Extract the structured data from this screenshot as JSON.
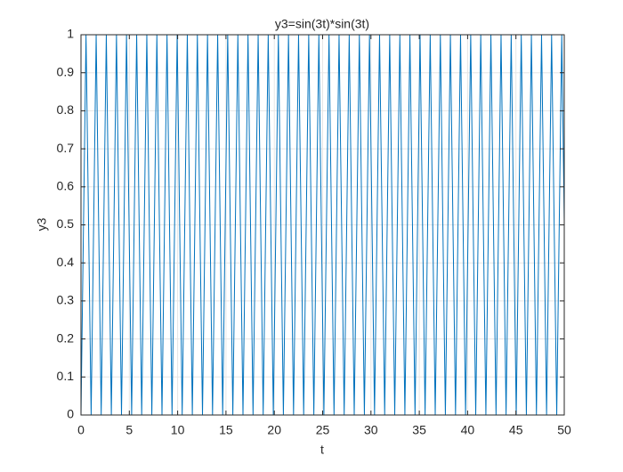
{
  "chart_data": {
    "type": "line",
    "title": "y3=sin(3t)*sin(3t)",
    "x_label": "t",
    "y_label": "y3",
    "series": [
      {
        "name": "y3",
        "color": "#0072bd",
        "x": [
          0,
          0.52,
          1.05,
          1.57,
          2.09,
          2.62,
          3.14,
          3.67,
          4.19,
          4.71,
          5.24,
          5.76,
          6.28,
          6.81,
          7.33,
          7.85,
          8.38,
          8.9,
          9.42,
          9.95,
          10.47,
          11.0,
          11.52,
          12.04,
          12.57,
          13.09,
          13.61,
          14.14,
          14.66,
          15.18,
          15.71,
          16.23,
          16.76,
          17.28,
          17.8,
          18.33,
          18.85,
          19.37,
          19.9,
          20.42,
          20.94,
          21.47,
          21.99,
          22.51,
          23.04,
          23.56,
          24.09,
          24.61,
          25.13,
          25.66,
          26.18,
          26.7,
          27.23,
          27.75,
          28.27,
          28.8,
          29.32,
          29.85,
          30.37,
          30.89,
          31.42,
          31.94,
          32.46,
          32.99,
          33.51,
          34.03,
          34.56,
          35.08,
          35.6,
          36.13,
          36.65,
          37.18,
          37.7,
          38.22,
          38.75,
          39.27,
          39.79,
          40.32,
          40.84,
          41.36,
          41.89,
          42.41,
          42.94,
          43.46,
          43.98,
          44.51,
          45.03,
          45.55,
          46.08,
          46.6,
          47.12,
          47.65,
          48.17,
          48.69,
          49.22,
          49.74,
          50
        ],
        "values": [
          0,
          1,
          0,
          1,
          0,
          1,
          0,
          1,
          0,
          1,
          0,
          1,
          0,
          1,
          0,
          1,
          0,
          1,
          0,
          1,
          0,
          1,
          0,
          1,
          0,
          1,
          0,
          1,
          0,
          1,
          0,
          1,
          0,
          1,
          0,
          1,
          0,
          1,
          0,
          1,
          0,
          1,
          0,
          1,
          0,
          1,
          0,
          1,
          0,
          1,
          0,
          1,
          0,
          1,
          0,
          1,
          0,
          1,
          0,
          1,
          0,
          1,
          0,
          1,
          0,
          1,
          0,
          1,
          0,
          1,
          0,
          1,
          0,
          1,
          0,
          1,
          0,
          1,
          0,
          1,
          0,
          1,
          0,
          1,
          0,
          1,
          0,
          1,
          0,
          1,
          0,
          1,
          0,
          1,
          0,
          1,
          0.51
        ]
      }
    ],
    "xlim": [
      0,
      50
    ],
    "xticks": [
      0,
      5,
      10,
      15,
      20,
      25,
      30,
      35,
      40,
      45,
      50
    ],
    "ylim": [
      0,
      1
    ],
    "yticks": [
      0,
      0.1,
      0.2,
      0.3,
      0.4,
      0.5,
      0.6,
      0.7,
      0.8,
      0.9,
      1
    ],
    "grid": true
  }
}
